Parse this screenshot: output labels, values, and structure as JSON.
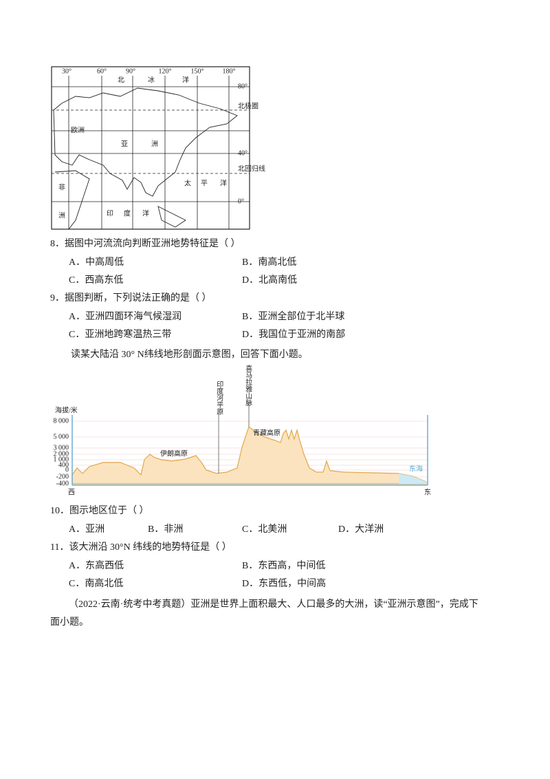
{
  "map": {
    "lon_labels": [
      "30°",
      "60°",
      "90°",
      "120°",
      "150°",
      "180°"
    ],
    "lat_labels": [
      "80°",
      "北极圈",
      "40°",
      "北回归线",
      "0°"
    ],
    "regions": [
      "北",
      "冰",
      "洋",
      "欧洲",
      "亚",
      "洲",
      "非",
      "洲",
      "印",
      "度",
      "洋",
      "太",
      "平",
      "洋"
    ]
  },
  "questions_a": [
    {
      "stem": "8．据图中河流流向判断亚洲地势特征是（  ）",
      "options": [
        "A．中高周低",
        "B．南高北低",
        "C．西高东低",
        "D．北高南低"
      ]
    },
    {
      "stem": "9．据图判断，下列说法正确的是（  ）",
      "options": [
        "A．亚洲四面环海气候湿润",
        "B．亚洲全部位于北半球",
        "C．亚洲地跨寒温热三带",
        "D．我国位于亚洲的南部"
      ]
    }
  ],
  "intro": "读某大陆沿 30° N纬线地形剖面示意图，回答下面小题。",
  "profile": {
    "ylabel": "海拔/米",
    "yticks": [
      "8 000",
      "5 000",
      "3 000",
      "2 000",
      "1 000",
      "400",
      "0",
      "-200",
      "-400"
    ],
    "west": "西",
    "east": "东",
    "labels": [
      "印度河平原",
      "喜马拉雅山脉",
      "伊朗高原",
      "青藏高原",
      "东海"
    ]
  },
  "questions_b": [
    {
      "stem": "10．图示地区位于（  ）",
      "options": [
        "A．亚洲",
        "B．非洲",
        "C．北美洲",
        "D．大洋洲"
      ]
    },
    {
      "stem": "11．该大洲沿 30°N 纬线的地势特征是（  ）",
      "options": [
        "A．东高西低",
        "B．东西高，中间低",
        "C．南高北低",
        "D．东西低，中间高"
      ]
    }
  ],
  "closing": [
    "（2022·云南·统考中考真题）亚洲是世界上面积最大、人口最多的大洲，读“亚洲示意图”，完成下",
    "面小题。"
  ]
}
